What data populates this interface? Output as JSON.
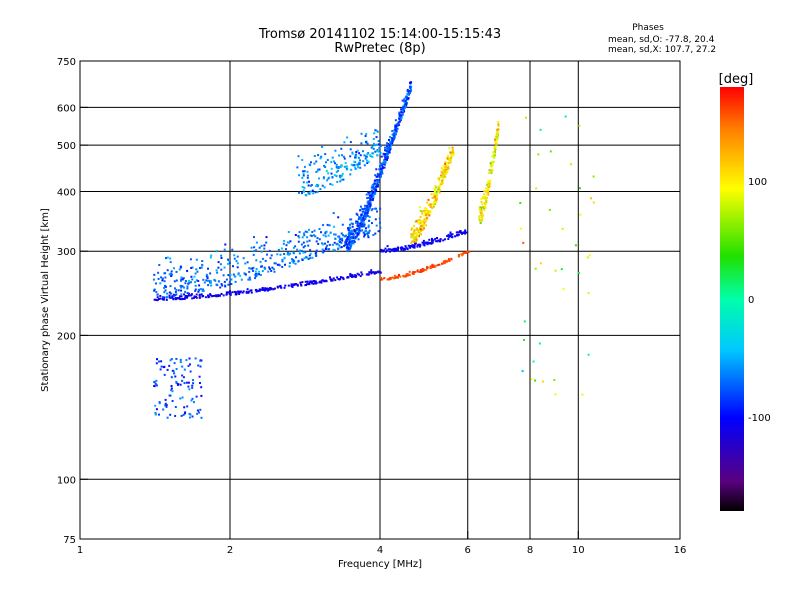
{
  "chart_data": {
    "type": "scatter",
    "title": "Tromsø 20141102 15:14:00-15:15:43",
    "subtitle": "RwPretec (8p)",
    "xlabel": "Frequency [MHz]",
    "ylabel": "Stationary phase Virtual Height [km]",
    "x_scale": "log",
    "y_scale": "log",
    "xlim": [
      1,
      16
    ],
    "ylim": [
      75,
      750
    ],
    "x_ticks": [
      1,
      2,
      4,
      6,
      8,
      10,
      16
    ],
    "y_ticks": [
      75,
      100,
      200,
      300,
      400,
      500,
      600,
      750
    ],
    "grid_x": [
      2,
      4,
      6,
      8,
      10
    ],
    "grid_y": [
      100,
      200,
      300,
      400,
      500,
      600
    ],
    "grid": true,
    "phases": {
      "title": "Phases",
      "line_o": "mean, sd,O: -77.8, 20.4",
      "line_x": "mean, sd,X: 107.7, 27.2"
    },
    "colorbar": {
      "label": "[deg]",
      "range": [
        -180,
        180
      ],
      "ticks": [
        100,
        0,
        -100
      ]
    },
    "point_groups": [
      {
        "name": "O-trace-lower-edge",
        "f": [
          1.4,
          4.0
        ],
        "h": [
          238,
          272
        ],
        "scatter": 4,
        "phase": -110,
        "phase_sd": 12,
        "count": 260
      },
      {
        "name": "O-trace-body",
        "f": [
          1.4,
          4.0
        ],
        "h": [
          240,
          330
        ],
        "scatter": 40,
        "phase": -70,
        "phase_sd": 25,
        "count": 480
      },
      {
        "name": "O-trace-upper",
        "f": [
          2.7,
          4.0
        ],
        "h": [
          390,
          480
        ],
        "scatter": 60,
        "phase": -60,
        "phase_sd": 30,
        "count": 200
      },
      {
        "name": "O-trace-cusp",
        "f": [
          3.4,
          4.6
        ],
        "h": [
          300,
          650
        ],
        "scatter": 30,
        "phase": -80,
        "phase_sd": 25,
        "count": 520
      },
      {
        "name": "X-trace-lower-edge",
        "f": [
          4.0,
          6.0
        ],
        "h": [
          262,
          300
        ],
        "scatter": 3,
        "phase": 160,
        "phase_sd": 10,
        "count": 110
      },
      {
        "name": "X-trace-blue-edge",
        "f": [
          4.0,
          6.0
        ],
        "h": [
          300,
          330
        ],
        "scatter": 6,
        "phase": -105,
        "phase_sd": 12,
        "count": 140
      },
      {
        "name": "X-trace-body",
        "f": [
          4.6,
          5.6
        ],
        "h": [
          310,
          480
        ],
        "scatter": 30,
        "phase": 110,
        "phase_sd": 40,
        "count": 260
      },
      {
        "name": "X-trace-upper",
        "f": [
          6.3,
          6.9
        ],
        "h": [
          340,
          540
        ],
        "scatter": 30,
        "phase": 95,
        "phase_sd": 40,
        "count": 150
      },
      {
        "name": "E-layer-cluster",
        "f": [
          1.4,
          1.75
        ],
        "h": [
          135,
          180
        ],
        "scatter": 0,
        "phase": -80,
        "phase_sd": 25,
        "count": 110
      },
      {
        "name": "scattered-high-freq",
        "f": [
          7.5,
          11.0
        ],
        "h": [
          150,
          600
        ],
        "scatter": 0,
        "phase": 60,
        "phase_sd": 70,
        "count": 40
      }
    ]
  }
}
